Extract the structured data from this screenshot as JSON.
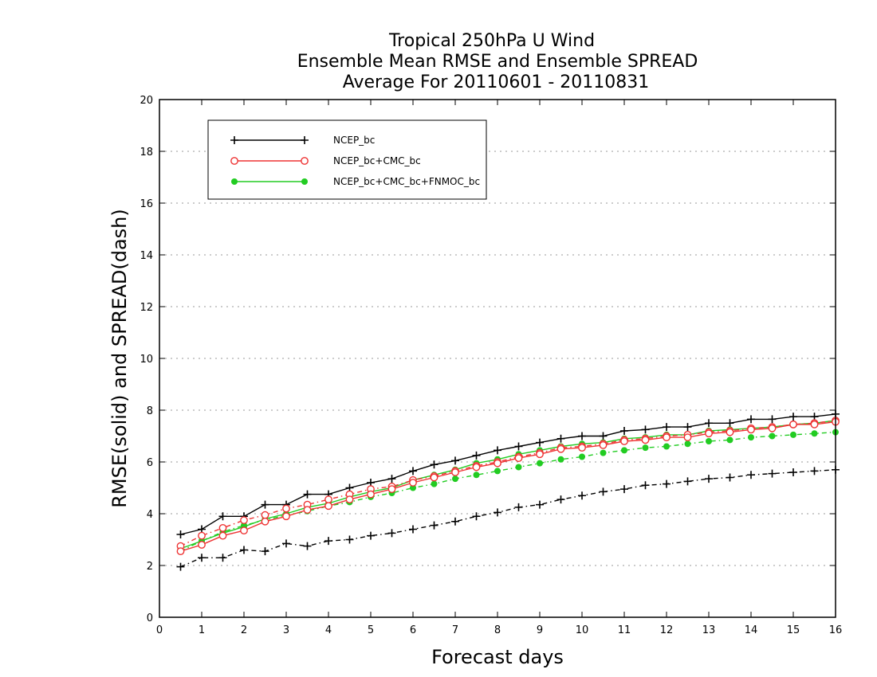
{
  "chart_data": {
    "type": "line",
    "title": [
      "Tropical 250hPa U Wind",
      "Ensemble Mean RMSE and Ensemble SPREAD",
      "Average For 20110601 - 20110831"
    ],
    "xlabel": "Forecast days",
    "ylabel": "RMSE(solid) and SPREAD(dash)",
    "xlim": [
      0,
      16
    ],
    "ylim": [
      0,
      20
    ],
    "xticks": [
      0,
      1,
      2,
      3,
      4,
      5,
      6,
      7,
      8,
      9,
      10,
      11,
      12,
      13,
      14,
      15,
      16
    ],
    "yticks": [
      0,
      2,
      4,
      6,
      8,
      10,
      12,
      14,
      16,
      18,
      20
    ],
    "grid": "horizontal dotted",
    "legend_position": "top-left",
    "x": [
      0.5,
      1,
      1.5,
      2,
      2.5,
      3,
      3.5,
      4,
      4.5,
      5,
      5.5,
      6,
      6.5,
      7,
      7.5,
      8,
      8.5,
      9,
      9.5,
      10,
      10.5,
      11,
      11.5,
      12,
      12.5,
      13,
      13.5,
      14,
      14.5,
      15,
      15.5,
      16
    ],
    "series": [
      {
        "name": "NCEP_bc",
        "color": "#000000",
        "marker": "plus",
        "rmse": [
          3.2,
          3.4,
          3.9,
          3.9,
          4.35,
          4.35,
          4.75,
          4.75,
          5.0,
          5.2,
          5.35,
          5.65,
          5.9,
          6.05,
          6.25,
          6.45,
          6.6,
          6.75,
          6.9,
          7.0,
          7.0,
          7.2,
          7.25,
          7.35,
          7.35,
          7.5,
          7.5,
          7.65,
          7.65,
          7.75,
          7.75,
          7.85
        ],
        "spread": [
          1.95,
          2.3,
          2.3,
          2.6,
          2.55,
          2.85,
          2.75,
          2.95,
          3.0,
          3.15,
          3.25,
          3.4,
          3.55,
          3.7,
          3.9,
          4.05,
          4.25,
          4.35,
          4.55,
          4.7,
          4.85,
          4.95,
          5.1,
          5.15,
          5.25,
          5.35,
          5.4,
          5.5,
          5.55,
          5.6,
          5.65,
          5.7
        ]
      },
      {
        "name": "NCEP_bc+CMC_bc",
        "color": "#ee3333",
        "marker": "open-circle",
        "rmse": [
          2.55,
          2.8,
          3.15,
          3.35,
          3.7,
          3.9,
          4.15,
          4.3,
          4.55,
          4.75,
          4.95,
          5.2,
          5.4,
          5.6,
          5.8,
          5.95,
          6.15,
          6.3,
          6.5,
          6.55,
          6.65,
          6.8,
          6.85,
          6.95,
          6.95,
          7.1,
          7.15,
          7.25,
          7.3,
          7.45,
          7.45,
          7.55
        ],
        "spread": [
          2.75,
          3.15,
          3.45,
          3.75,
          3.95,
          4.2,
          4.35,
          4.55,
          4.75,
          4.95,
          5.05,
          5.3,
          5.45,
          5.65,
          5.85,
          6.0,
          6.2,
          6.35,
          6.55,
          6.6,
          6.7,
          6.85,
          6.9,
          7.0,
          7.05,
          7.15,
          7.2,
          7.3,
          7.35,
          7.45,
          7.5,
          7.6
        ]
      },
      {
        "name": "NCEP_bc+CMC_bc+FNMOC_bc",
        "color": "#22cc22",
        "marker": "filled-circle",
        "rmse": [
          2.65,
          2.95,
          3.25,
          3.5,
          3.8,
          4.0,
          4.25,
          4.4,
          4.65,
          4.85,
          5.0,
          5.3,
          5.5,
          5.7,
          5.95,
          6.1,
          6.3,
          6.45,
          6.6,
          6.7,
          6.75,
          6.9,
          6.95,
          7.05,
          7.05,
          7.2,
          7.25,
          7.3,
          7.35,
          7.45,
          7.5,
          7.6
        ],
        "spread": [
          2.55,
          2.95,
          3.3,
          3.55,
          3.75,
          3.95,
          4.1,
          4.3,
          4.45,
          4.65,
          4.8,
          5.0,
          5.15,
          5.35,
          5.5,
          5.65,
          5.8,
          5.95,
          6.1,
          6.2,
          6.35,
          6.45,
          6.55,
          6.6,
          6.7,
          6.8,
          6.85,
          6.95,
          7.0,
          7.05,
          7.1,
          7.15
        ]
      }
    ]
  }
}
